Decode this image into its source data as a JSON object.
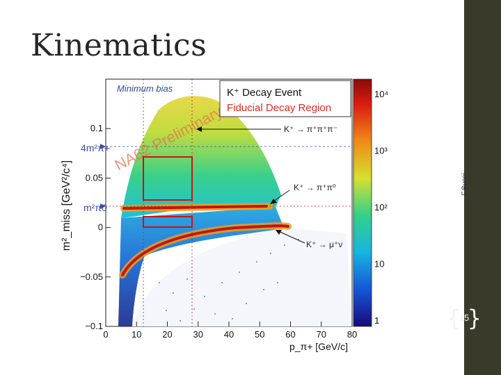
{
  "slide": {
    "title": "Kinematics",
    "author": "F.Bucci",
    "page_number": "15"
  },
  "chart_data": {
    "type": "heatmap",
    "xlabel": "p_π+ [GeV/c]",
    "ylabel": "m²_miss [GeV²/c⁴]",
    "xlim": [
      0,
      80
    ],
    "ylim": [
      -0.1,
      0.15
    ],
    "x_ticks": [
      "0",
      "10",
      "20",
      "30",
      "40",
      "50",
      "60",
      "70",
      "80"
    ],
    "y_ticks": [
      "0.1",
      "0.05",
      "0",
      "−0.05",
      "−0.1"
    ],
    "colorbar_ticks": [
      "10⁴",
      "10³",
      "10²",
      "10",
      "1"
    ],
    "colorbar_scale": "log",
    "watermark": "NA62 Preliminary",
    "label_minimum_bias": "Minimum bias",
    "legend": {
      "item1": "K⁺ Decay Event",
      "item2": "Fiducial Decay Region",
      "item2_color": "#e0281e"
    },
    "y_markers": [
      "4m²π+",
      "m²π0"
    ],
    "annotations": [
      {
        "text": "K⁺ → π⁺π⁺π⁻",
        "target": "m² ≈ 0.08 band",
        "y": 0.08
      },
      {
        "text": "K⁺ → π⁺π⁰",
        "target": "m²π0 band",
        "y": 0.018
      },
      {
        "text": "K⁺ → μ⁺ν",
        "target": "muon curve"
      }
    ],
    "bands": [
      {
        "name": "K⁺ → π⁺π⁰",
        "y": 0.018,
        "x_range": [
          8,
          63
        ]
      },
      {
        "name": "K⁺ → μ⁺ν",
        "curve": "rising",
        "x_range": [
          5,
          68
        ]
      }
    ],
    "signal_regions": [
      {
        "x": [
          15,
          35
        ],
        "y": [
          0.026,
          0.068
        ]
      },
      {
        "x": [
          15,
          35
        ],
        "y": [
          0,
          0.01
        ]
      }
    ],
    "dashed_lines_x": [
      15,
      35
    ],
    "dashed_lines_y": [
      0.018,
      0.077
    ]
  }
}
